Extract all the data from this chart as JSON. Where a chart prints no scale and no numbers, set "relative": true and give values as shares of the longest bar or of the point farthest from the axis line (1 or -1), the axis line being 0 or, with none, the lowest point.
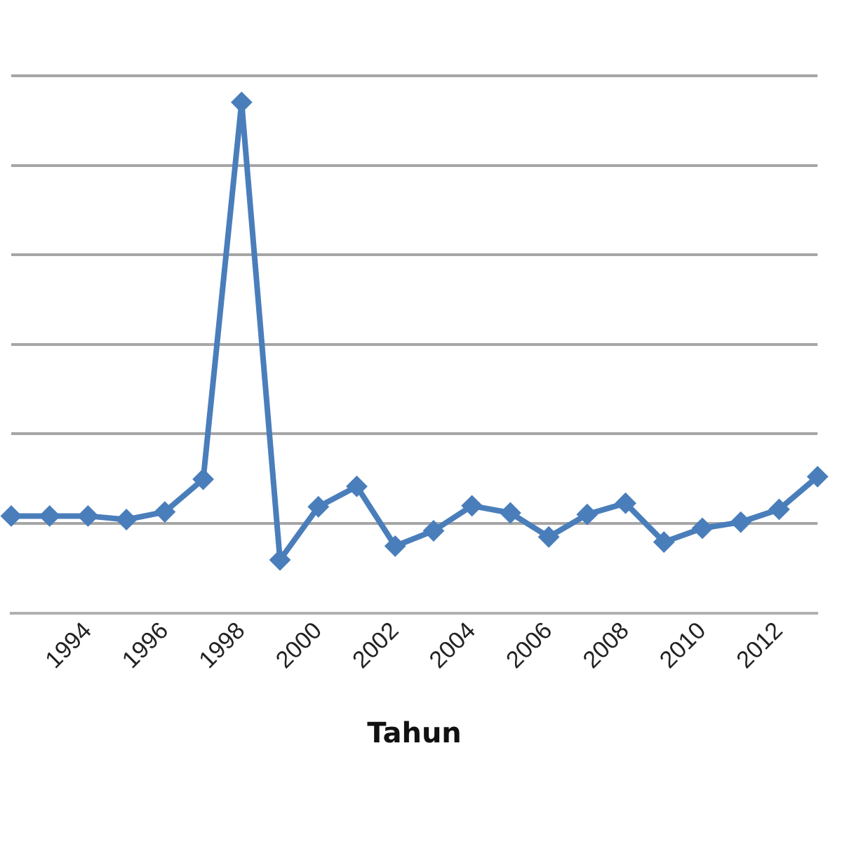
{
  "chart_data": {
    "type": "line",
    "xlabel": "Tahun",
    "relative": true,
    "grid": "y",
    "legend": false,
    "marker": "diamond",
    "line_style": "solid",
    "categories": [
      null,
      null,
      "1994",
      null,
      "1996",
      null,
      "1998",
      null,
      "2000",
      null,
      "2002",
      null,
      "2004",
      null,
      "2006",
      null,
      "2008",
      null,
      "2010",
      null,
      "2012",
      null
    ],
    "series": [
      {
        "color": "#4a7ebb",
        "values": [
          0.19,
          0.19,
          0.19,
          0.183,
          0.198,
          0.262,
          1,
          0.104,
          0.208,
          0.248,
          0.131,
          0.161,
          0.21,
          0.196,
          0.149,
          0.193,
          0.215,
          0.139,
          0.166,
          0.178,
          0.203,
          0.267
        ]
      }
    ]
  }
}
